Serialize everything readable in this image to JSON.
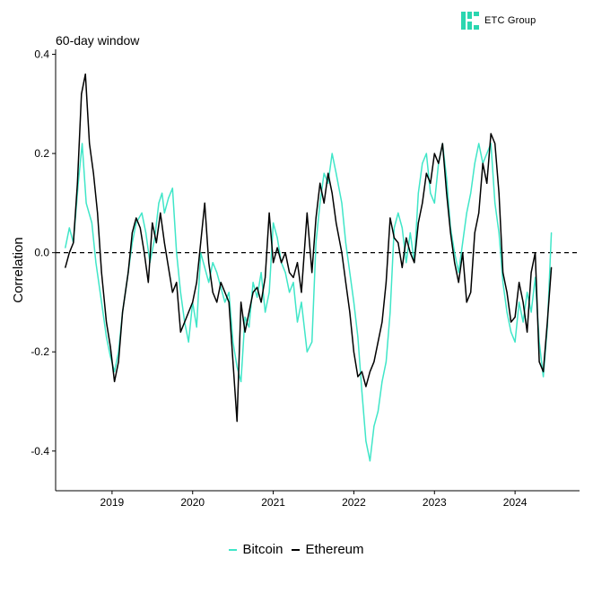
{
  "logo": {
    "text": "ETC Group",
    "color": "#2ad6b0"
  },
  "subtitle": "60-day window",
  "chart_data": {
    "type": "line",
    "title": "60-day window",
    "xlabel": "",
    "ylabel": "Correlation",
    "xlim": [
      2018.3,
      2024.8
    ],
    "ylim": [
      -0.48,
      0.41
    ],
    "x_ticks": [
      2019,
      2020,
      2021,
      2022,
      2023,
      2024
    ],
    "x_tick_labels": [
      "2019",
      "2020",
      "2021",
      "2022",
      "2023",
      "2024"
    ],
    "y_ticks": [
      0.4,
      0.2,
      0.0,
      -0.2,
      -0.4
    ],
    "y_tick_labels": [
      "0.4",
      "0.2",
      "0.0",
      "-0.2",
      "-0.4"
    ],
    "reference_line": {
      "y": 0.0,
      "style": "dashed"
    },
    "legend": {
      "position": "bottom",
      "entries": [
        "Bitcoin",
        "Ethereum"
      ]
    },
    "series": [
      {
        "name": "Bitcoin",
        "color": "#40e6c8",
        "x": [
          2018.42,
          2018.47,
          2018.52,
          2018.58,
          2018.63,
          2018.68,
          2018.75,
          2018.8,
          2018.87,
          2018.93,
          2018.98,
          2019.03,
          2019.08,
          2019.13,
          2019.2,
          2019.25,
          2019.3,
          2019.37,
          2019.42,
          2019.47,
          2019.53,
          2019.58,
          2019.62,
          2019.65,
          2019.7,
          2019.75,
          2019.8,
          2019.85,
          2019.9,
          2019.95,
          2020.0,
          2020.05,
          2020.1,
          2020.15,
          2020.2,
          2020.25,
          2020.3,
          2020.35,
          2020.4,
          2020.45,
          2020.5,
          2020.55,
          2020.6,
          2020.65,
          2020.7,
          2020.75,
          2020.8,
          2020.85,
          2020.9,
          2020.95,
          2021.0,
          2021.05,
          2021.1,
          2021.15,
          2021.2,
          2021.25,
          2021.3,
          2021.35,
          2021.42,
          2021.48,
          2021.53,
          2021.58,
          2021.63,
          2021.68,
          2021.73,
          2021.78,
          2021.85,
          2021.9,
          2021.95,
          2022.0,
          2022.05,
          2022.1,
          2022.15,
          2022.2,
          2022.25,
          2022.3,
          2022.35,
          2022.4,
          2022.45,
          2022.5,
          2022.55,
          2022.6,
          2022.65,
          2022.7,
          2022.75,
          2022.8,
          2022.85,
          2022.9,
          2022.95,
          2023.0,
          2023.05,
          2023.1,
          2023.15,
          2023.2,
          2023.25,
          2023.3,
          2023.35,
          2023.4,
          2023.45,
          2023.5,
          2023.55,
          2023.6,
          2023.65,
          2023.7,
          2023.75,
          2023.8,
          2023.85,
          2023.9,
          2023.95,
          2024.0,
          2024.05,
          2024.1,
          2024.15,
          2024.2,
          2024.25,
          2024.3,
          2024.35,
          2024.4,
          2024.45
        ],
        "values": [
          0.01,
          0.05,
          0.02,
          0.14,
          0.22,
          0.1,
          0.06,
          -0.02,
          -0.1,
          -0.17,
          -0.21,
          -0.24,
          -0.2,
          -0.12,
          -0.04,
          0.02,
          0.06,
          0.08,
          0.04,
          -0.02,
          0.03,
          0.1,
          0.12,
          0.08,
          0.11,
          0.13,
          0.0,
          -0.08,
          -0.14,
          -0.18,
          -0.1,
          -0.15,
          0.0,
          -0.03,
          -0.06,
          -0.02,
          -0.04,
          -0.07,
          -0.1,
          -0.08,
          -0.18,
          -0.23,
          -0.26,
          -0.13,
          -0.15,
          -0.06,
          -0.09,
          -0.04,
          -0.12,
          -0.08,
          0.06,
          0.03,
          -0.02,
          -0.04,
          -0.08,
          -0.06,
          -0.14,
          -0.1,
          -0.2,
          -0.18,
          0.02,
          0.1,
          0.16,
          0.14,
          0.2,
          0.16,
          0.1,
          0.02,
          -0.04,
          -0.1,
          -0.17,
          -0.28,
          -0.38,
          -0.42,
          -0.35,
          -0.32,
          -0.26,
          -0.22,
          -0.12,
          0.05,
          0.08,
          0.05,
          -0.02,
          0.04,
          -0.02,
          0.12,
          0.18,
          0.2,
          0.12,
          0.1,
          0.18,
          0.22,
          0.15,
          0.05,
          0.0,
          -0.04,
          0.02,
          0.08,
          0.12,
          0.18,
          0.22,
          0.18,
          0.2,
          0.22,
          0.1,
          0.04,
          -0.06,
          -0.12,
          -0.16,
          -0.18,
          -0.1,
          -0.14,
          -0.08,
          -0.12,
          -0.05,
          -0.18,
          -0.25,
          -0.15,
          0.04
        ]
      },
      {
        "name": "Ethereum",
        "color": "#000000",
        "x": [
          2018.42,
          2018.47,
          2018.52,
          2018.57,
          2018.62,
          2018.67,
          2018.72,
          2018.77,
          2018.82,
          2018.87,
          2018.93,
          2018.98,
          2019.03,
          2019.08,
          2019.13,
          2019.2,
          2019.25,
          2019.3,
          2019.35,
          2019.4,
          2019.45,
          2019.5,
          2019.55,
          2019.6,
          2019.65,
          2019.7,
          2019.75,
          2019.8,
          2019.85,
          2019.9,
          2019.95,
          2020.0,
          2020.05,
          2020.1,
          2020.15,
          2020.2,
          2020.25,
          2020.3,
          2020.35,
          2020.4,
          2020.45,
          2020.5,
          2020.55,
          2020.6,
          2020.65,
          2020.7,
          2020.75,
          2020.8,
          2020.85,
          2020.9,
          2020.95,
          2021.0,
          2021.05,
          2021.1,
          2021.15,
          2021.2,
          2021.25,
          2021.3,
          2021.35,
          2021.42,
          2021.48,
          2021.53,
          2021.58,
          2021.63,
          2021.68,
          2021.73,
          2021.78,
          2021.85,
          2021.9,
          2021.95,
          2022.0,
          2022.05,
          2022.1,
          2022.15,
          2022.2,
          2022.25,
          2022.3,
          2022.35,
          2022.4,
          2022.45,
          2022.5,
          2022.55,
          2022.6,
          2022.65,
          2022.7,
          2022.75,
          2022.8,
          2022.85,
          2022.9,
          2022.95,
          2023.0,
          2023.05,
          2023.1,
          2023.15,
          2023.2,
          2023.25,
          2023.3,
          2023.35,
          2023.4,
          2023.45,
          2023.5,
          2023.55,
          2023.6,
          2023.65,
          2023.7,
          2023.75,
          2023.8,
          2023.85,
          2023.9,
          2023.95,
          2024.0,
          2024.05,
          2024.1,
          2024.15,
          2024.2,
          2024.25,
          2024.3,
          2024.35,
          2024.4,
          2024.45
        ],
        "values": [
          -0.03,
          0.0,
          0.02,
          0.14,
          0.32,
          0.36,
          0.22,
          0.16,
          0.08,
          -0.04,
          -0.14,
          -0.19,
          -0.26,
          -0.22,
          -0.12,
          -0.04,
          0.04,
          0.07,
          0.05,
          0.0,
          -0.06,
          0.06,
          0.02,
          0.08,
          0.02,
          -0.03,
          -0.08,
          -0.06,
          -0.16,
          -0.14,
          -0.12,
          -0.1,
          -0.06,
          0.02,
          0.1,
          -0.02,
          -0.08,
          -0.1,
          -0.06,
          -0.08,
          -0.1,
          -0.22,
          -0.34,
          -0.1,
          -0.16,
          -0.12,
          -0.08,
          -0.07,
          -0.1,
          -0.05,
          0.08,
          -0.02,
          0.01,
          -0.02,
          0.0,
          -0.04,
          -0.05,
          -0.02,
          -0.08,
          0.08,
          -0.04,
          0.07,
          0.14,
          0.1,
          0.16,
          0.12,
          0.06,
          0.0,
          -0.06,
          -0.12,
          -0.2,
          -0.25,
          -0.24,
          -0.27,
          -0.24,
          -0.22,
          -0.18,
          -0.14,
          -0.06,
          0.07,
          0.03,
          0.02,
          -0.03,
          0.03,
          0.0,
          -0.02,
          0.06,
          0.1,
          0.16,
          0.14,
          0.2,
          0.18,
          0.22,
          0.12,
          0.04,
          -0.02,
          -0.06,
          0.0,
          -0.1,
          -0.08,
          0.04,
          0.08,
          0.18,
          0.14,
          0.24,
          0.22,
          0.12,
          -0.04,
          -0.08,
          -0.14,
          -0.13,
          -0.06,
          -0.1,
          -0.16,
          -0.04,
          0.0,
          -0.22,
          -0.24,
          -0.14,
          -0.03
        ]
      }
    ]
  }
}
